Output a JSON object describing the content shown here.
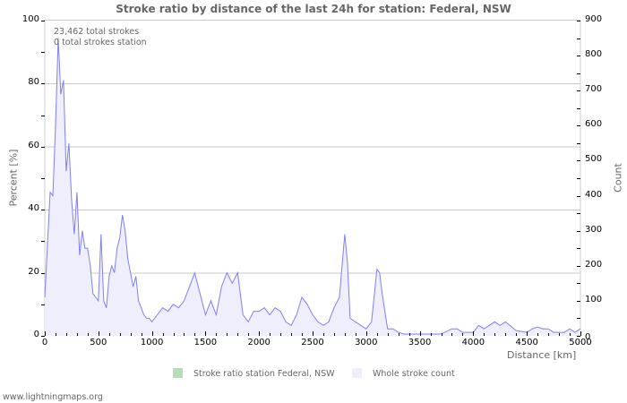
{
  "chart_data": {
    "type": "area",
    "title": "Stroke ratio by distance of the last 24h for station: Federal, NSW",
    "xlabel": "Distance   [km]",
    "ylabel_left": "Percent   [%]",
    "ylabel_right": "Count",
    "xlim": [
      0,
      5000
    ],
    "ylim_left": [
      0,
      100
    ],
    "ylim_right": [
      0,
      900
    ],
    "x_ticks": [
      "0",
      "500",
      "1000",
      "1500",
      "2000",
      "2500",
      "3000",
      "3500",
      "4000",
      "4500",
      "5000"
    ],
    "y_left_ticks": [
      "0",
      "20",
      "40",
      "60",
      "80",
      "100"
    ],
    "y_right_ticks": [
      "0",
      "100",
      "200",
      "300",
      "400",
      "500",
      "600",
      "700",
      "800",
      "900"
    ],
    "grid": "horizontal at left-axis 20,40,60,80",
    "annotations": [
      "23,462 total strokes",
      "0 total strokes station"
    ],
    "legend": [
      {
        "label": "Stroke ratio station Federal, NSW",
        "color": "#b3e0b3"
      },
      {
        "label": "Whole stroke count",
        "color": "#eeeefc"
      }
    ],
    "legend_position": "bottom",
    "series": [
      {
        "name": "Whole stroke count",
        "axis": "right",
        "x": [
          0,
          25,
          50,
          75,
          100,
          125,
          150,
          175,
          200,
          225,
          250,
          275,
          300,
          325,
          350,
          375,
          400,
          425,
          450,
          475,
          500,
          525,
          550,
          575,
          600,
          625,
          650,
          675,
          700,
          725,
          750,
          775,
          800,
          825,
          850,
          875,
          900,
          925,
          950,
          975,
          1000,
          1050,
          1100,
          1150,
          1200,
          1250,
          1300,
          1350,
          1400,
          1450,
          1500,
          1550,
          1600,
          1650,
          1700,
          1750,
          1800,
          1850,
          1900,
          1950,
          2000,
          2050,
          2100,
          2150,
          2200,
          2250,
          2300,
          2350,
          2400,
          2450,
          2500,
          2550,
          2600,
          2650,
          2700,
          2750,
          2800,
          2825,
          2850,
          2900,
          2950,
          3000,
          3050,
          3100,
          3125,
          3150,
          3200,
          3250,
          3300,
          3350,
          3400,
          3500,
          3600,
          3700,
          3800,
          3850,
          3900,
          4000,
          4050,
          4100,
          4150,
          4200,
          4250,
          4300,
          4400,
          4500,
          4550,
          4600,
          4650,
          4700,
          4750,
          4800,
          4850,
          4900,
          4950,
          5000
        ],
        "values": [
          110,
          260,
          410,
          400,
          600,
          850,
          690,
          730,
          470,
          550,
          390,
          290,
          410,
          230,
          300,
          250,
          250,
          200,
          120,
          110,
          100,
          290,
          100,
          80,
          170,
          200,
          180,
          250,
          280,
          345,
          300,
          220,
          180,
          140,
          170,
          100,
          80,
          60,
          50,
          50,
          40,
          60,
          80,
          70,
          90,
          80,
          100,
          140,
          180,
          120,
          60,
          100,
          60,
          140,
          180,
          150,
          180,
          60,
          40,
          70,
          70,
          80,
          60,
          80,
          70,
          40,
          30,
          60,
          110,
          90,
          60,
          40,
          30,
          40,
          80,
          110,
          290,
          210,
          50,
          40,
          30,
          20,
          40,
          190,
          180,
          120,
          20,
          20,
          10,
          5,
          5,
          5,
          5,
          5,
          20,
          20,
          10,
          10,
          30,
          20,
          30,
          40,
          30,
          40,
          15,
          10,
          20,
          25,
          20,
          20,
          10,
          10,
          10,
          20,
          10,
          20
        ]
      },
      {
        "name": "Stroke ratio station Federal, NSW",
        "axis": "left",
        "x": [],
        "values": []
      }
    ]
  },
  "footer": "www.lightningmaps.org"
}
